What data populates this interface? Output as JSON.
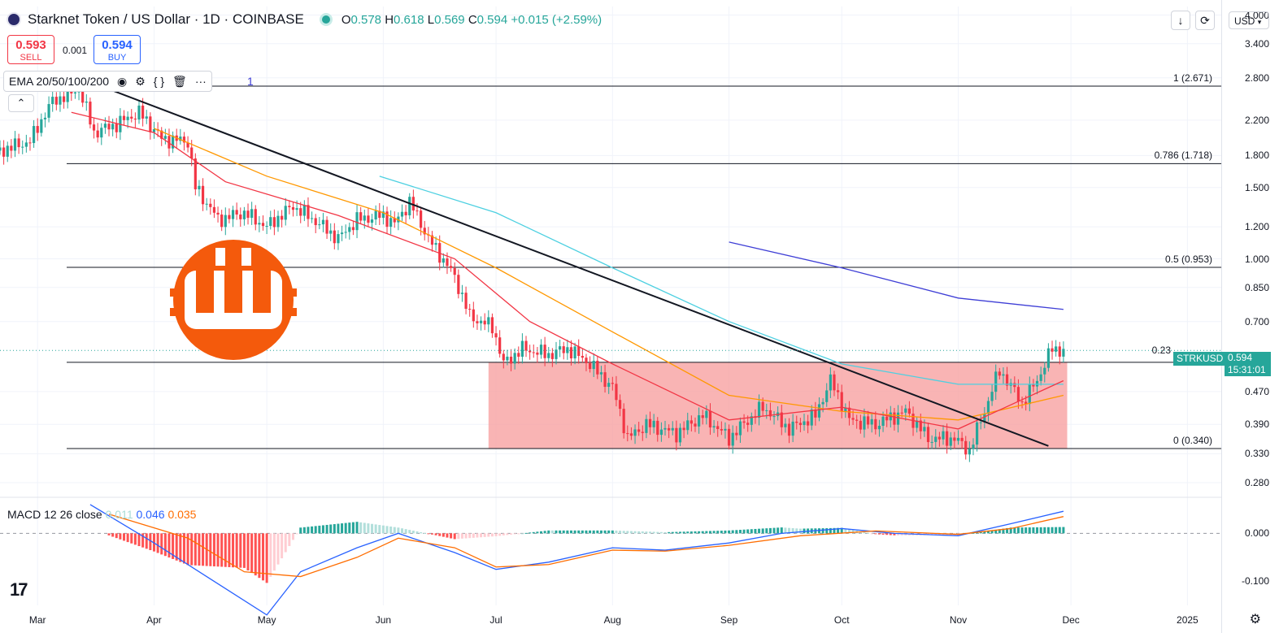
{
  "header": {
    "title": "Starknet Token / US Dollar · 1D · COINBASE",
    "open_label": "O",
    "open": "0.578",
    "high_label": "H",
    "high": "0.618",
    "low_label": "L",
    "low": "0.569",
    "close_label": "C",
    "close": "0.594",
    "change": "+0.015 (+2.59%)"
  },
  "trade": {
    "sell_price": "0.593",
    "sell_label": "SELL",
    "spread": "0.001",
    "buy_price": "0.594",
    "buy_label": "BUY"
  },
  "indicator": {
    "name": "EMA 20/50/100/200",
    "truncated_value": "1"
  },
  "macd": {
    "label": "MACD 12 26 close",
    "hist": "0.011",
    "macd": "0.046",
    "signal": "0.035"
  },
  "axis": {
    "currency": "USD",
    "price_ticks": [
      "4.000",
      "3.400",
      "2.800",
      "2.200",
      "1.800",
      "1.500",
      "1.200",
      "1.000",
      "0.850",
      "0.700",
      "0.470",
      "0.390",
      "0.330",
      "0.280"
    ],
    "macd_ticks": [
      "0.000",
      "-0.100"
    ],
    "date_ticks": [
      "Mar",
      "Apr",
      "May",
      "Jun",
      "Jul",
      "Aug",
      "Sep",
      "Oct",
      "Nov",
      "Dec",
      "2025"
    ]
  },
  "fib_levels": [
    {
      "label": "1 (2.671)",
      "value": 2.671
    },
    {
      "label": "0.786 (1.718)",
      "value": 1.718
    },
    {
      "label": "0.5 (0.953)",
      "value": 0.953
    },
    {
      "label": "0.23",
      "value": 0.555
    },
    {
      "label": "0 (0.340)",
      "value": 0.34
    }
  ],
  "last_price": {
    "symbol": "STRKUSD",
    "price": "0.594",
    "countdown": "15:31:01"
  },
  "colors": {
    "up": "#26a69a",
    "down": "#f23645",
    "ema20": "#f23645",
    "ema50": "#ff9800",
    "ema100": "#4dd0e1",
    "ema200": "#3f3fd6",
    "zone": "#f7a1a1",
    "macd": "#2962ff",
    "signal": "#ff6d00",
    "logo": "#f45a0c"
  },
  "chart_data": {
    "type": "candlestick",
    "x_range": [
      "2024-02-20",
      "2025-01-10"
    ],
    "y_scale": "log",
    "ylim": [
      0.26,
      4.2
    ],
    "close_anchors": [
      [
        "2024-02-20",
        1.85
      ],
      [
        "2024-02-28",
        1.95
      ],
      [
        "2024-03-05",
        2.45
      ],
      [
        "2024-03-12",
        2.62
      ],
      [
        "2024-03-16",
        2.05
      ],
      [
        "2024-03-22",
        2.15
      ],
      [
        "2024-03-28",
        2.3
      ],
      [
        "2024-04-03",
        1.98
      ],
      [
        "2024-04-10",
        1.95
      ],
      [
        "2024-04-12",
        1.5
      ],
      [
        "2024-04-18",
        1.25
      ],
      [
        "2024-04-25",
        1.3
      ],
      [
        "2024-05-01",
        1.2
      ],
      [
        "2024-05-08",
        1.35
      ],
      [
        "2024-05-15",
        1.22
      ],
      [
        "2024-05-20",
        1.12
      ],
      [
        "2024-05-25",
        1.25
      ],
      [
        "2024-06-01",
        1.28
      ],
      [
        "2024-06-04",
        1.22
      ],
      [
        "2024-06-08",
        1.38
      ],
      [
        "2024-06-13",
        1.12
      ],
      [
        "2024-06-20",
        0.9
      ],
      [
        "2024-06-24",
        0.72
      ],
      [
        "2024-06-30",
        0.68
      ],
      [
        "2024-07-03",
        0.55
      ],
      [
        "2024-07-08",
        0.6
      ],
      [
        "2024-07-15",
        0.58
      ],
      [
        "2024-07-20",
        0.6
      ],
      [
        "2024-07-25",
        0.56
      ],
      [
        "2024-08-01",
        0.48
      ],
      [
        "2024-08-05",
        0.36
      ],
      [
        "2024-08-10",
        0.39
      ],
      [
        "2024-08-18",
        0.37
      ],
      [
        "2024-08-25",
        0.41
      ],
      [
        "2024-09-01",
        0.36
      ],
      [
        "2024-09-10",
        0.43
      ],
      [
        "2024-09-17",
        0.38
      ],
      [
        "2024-09-24",
        0.41
      ],
      [
        "2024-09-28",
        0.5
      ],
      [
        "2024-10-03",
        0.4
      ],
      [
        "2024-10-10",
        0.39
      ],
      [
        "2024-10-18",
        0.42
      ],
      [
        "2024-10-24",
        0.36
      ],
      [
        "2024-10-31",
        0.36
      ],
      [
        "2024-11-04",
        0.335
      ],
      [
        "2024-11-08",
        0.42
      ],
      [
        "2024-11-12",
        0.53
      ],
      [
        "2024-11-18",
        0.44
      ],
      [
        "2024-11-22",
        0.5
      ],
      [
        "2024-11-26",
        0.6
      ],
      [
        "2024-11-29",
        0.594
      ]
    ],
    "ema20": [
      [
        "2024-03-10",
        2.3
      ],
      [
        "2024-04-01",
        2.05
      ],
      [
        "2024-04-20",
        1.55
      ],
      [
        "2024-05-20",
        1.28
      ],
      [
        "2024-06-20",
        1.0
      ],
      [
        "2024-07-10",
        0.7
      ],
      [
        "2024-08-01",
        0.55
      ],
      [
        "2024-09-01",
        0.4
      ],
      [
        "2024-10-01",
        0.43
      ],
      [
        "2024-11-01",
        0.38
      ],
      [
        "2024-11-29",
        0.5
      ]
    ],
    "ema50": [
      [
        "2024-04-01",
        2.1
      ],
      [
        "2024-05-01",
        1.6
      ],
      [
        "2024-06-01",
        1.3
      ],
      [
        "2024-07-01",
        0.95
      ],
      [
        "2024-08-01",
        0.66
      ],
      [
        "2024-09-01",
        0.46
      ],
      [
        "2024-10-01",
        0.42
      ],
      [
        "2024-11-01",
        0.4
      ],
      [
        "2024-11-29",
        0.46
      ]
    ],
    "ema100": [
      [
        "2024-05-31",
        1.6
      ],
      [
        "2024-07-01",
        1.3
      ],
      [
        "2024-08-01",
        0.95
      ],
      [
        "2024-09-01",
        0.7
      ],
      [
        "2024-10-01",
        0.55
      ],
      [
        "2024-11-01",
        0.49
      ],
      [
        "2024-11-29",
        0.49
      ]
    ],
    "ema200": [
      [
        "2024-09-01",
        1.1
      ],
      [
        "2024-10-01",
        0.95
      ],
      [
        "2024-11-01",
        0.8
      ],
      [
        "2024-11-29",
        0.75
      ]
    ],
    "trendline": [
      [
        "2024-03-12",
        2.8
      ],
      [
        "2024-11-25",
        0.345
      ]
    ],
    "zone": {
      "x": [
        "2024-06-29",
        "2024-11-30"
      ],
      "y": [
        0.34,
        0.555
      ]
    },
    "macd_series": [
      [
        "2024-03-15",
        0.06
      ],
      [
        "2024-04-01",
        -0.02
      ],
      [
        "2024-04-15",
        -0.09
      ],
      [
        "2024-05-01",
        -0.17
      ],
      [
        "2024-05-10",
        -0.08
      ],
      [
        "2024-05-25",
        -0.03
      ],
      [
        "2024-06-05",
        0.0
      ],
      [
        "2024-06-20",
        -0.04
      ],
      [
        "2024-07-01",
        -0.075
      ],
      [
        "2024-07-15",
        -0.06
      ],
      [
        "2024-08-01",
        -0.03
      ],
      [
        "2024-08-15",
        -0.035
      ],
      [
        "2024-09-01",
        -0.02
      ],
      [
        "2024-09-15",
        0.0
      ],
      [
        "2024-10-01",
        0.01
      ],
      [
        "2024-10-15",
        0.0
      ],
      [
        "2024-11-01",
        -0.005
      ],
      [
        "2024-11-15",
        0.02
      ],
      [
        "2024-11-29",
        0.046
      ]
    ],
    "signal_series": [
      [
        "2024-03-20",
        0.04
      ],
      [
        "2024-04-10",
        -0.01
      ],
      [
        "2024-04-25",
        -0.08
      ],
      [
        "2024-05-10",
        -0.09
      ],
      [
        "2024-05-25",
        -0.05
      ],
      [
        "2024-06-05",
        -0.01
      ],
      [
        "2024-06-20",
        -0.03
      ],
      [
        "2024-07-01",
        -0.07
      ],
      [
        "2024-07-15",
        -0.065
      ],
      [
        "2024-08-01",
        -0.035
      ],
      [
        "2024-08-15",
        -0.037
      ],
      [
        "2024-09-01",
        -0.025
      ],
      [
        "2024-09-20",
        -0.005
      ],
      [
        "2024-10-10",
        0.005
      ],
      [
        "2024-11-01",
        -0.002
      ],
      [
        "2024-11-15",
        0.01
      ],
      [
        "2024-11-29",
        0.035
      ]
    ],
    "macd_ylim": [
      -0.15,
      0.07
    ]
  }
}
